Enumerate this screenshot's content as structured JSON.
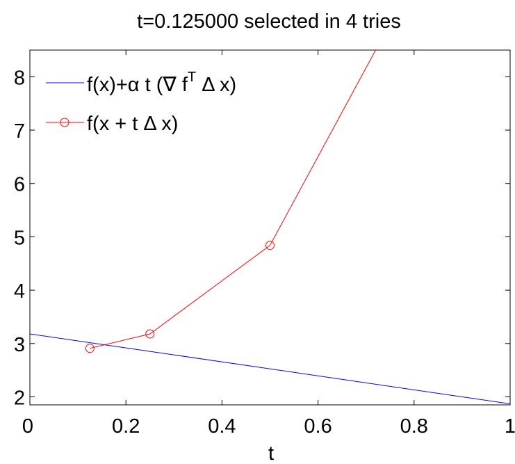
{
  "chart_data": {
    "type": "line",
    "title": "t=0.125000 selected in 4 tries",
    "xlabel": "t",
    "ylabel": "",
    "xlim": [
      0,
      1
    ],
    "ylim": [
      1.85,
      8.5
    ],
    "x_ticks": [
      "0",
      "0.2",
      "0.4",
      "0.6",
      "0.8",
      "1"
    ],
    "y_ticks": [
      "2",
      "3",
      "4",
      "5",
      "6",
      "7",
      "8"
    ],
    "grid": false,
    "legend_position": "top-left",
    "series": [
      {
        "name": "f(x)+α t (∇ fᵀ Δ x)",
        "color": "#0000ff",
        "marker": "none",
        "x": [
          0,
          1
        ],
        "y": [
          3.18,
          1.87
        ]
      },
      {
        "name": "f(x + t Δ x)",
        "color": "#ff0000",
        "marker": "circle",
        "x": [
          0.125,
          0.25,
          0.5,
          0.72
        ],
        "y": [
          2.91,
          3.18,
          4.84,
          8.5
        ],
        "marker_points": [
          0,
          1,
          2
        ]
      }
    ]
  }
}
